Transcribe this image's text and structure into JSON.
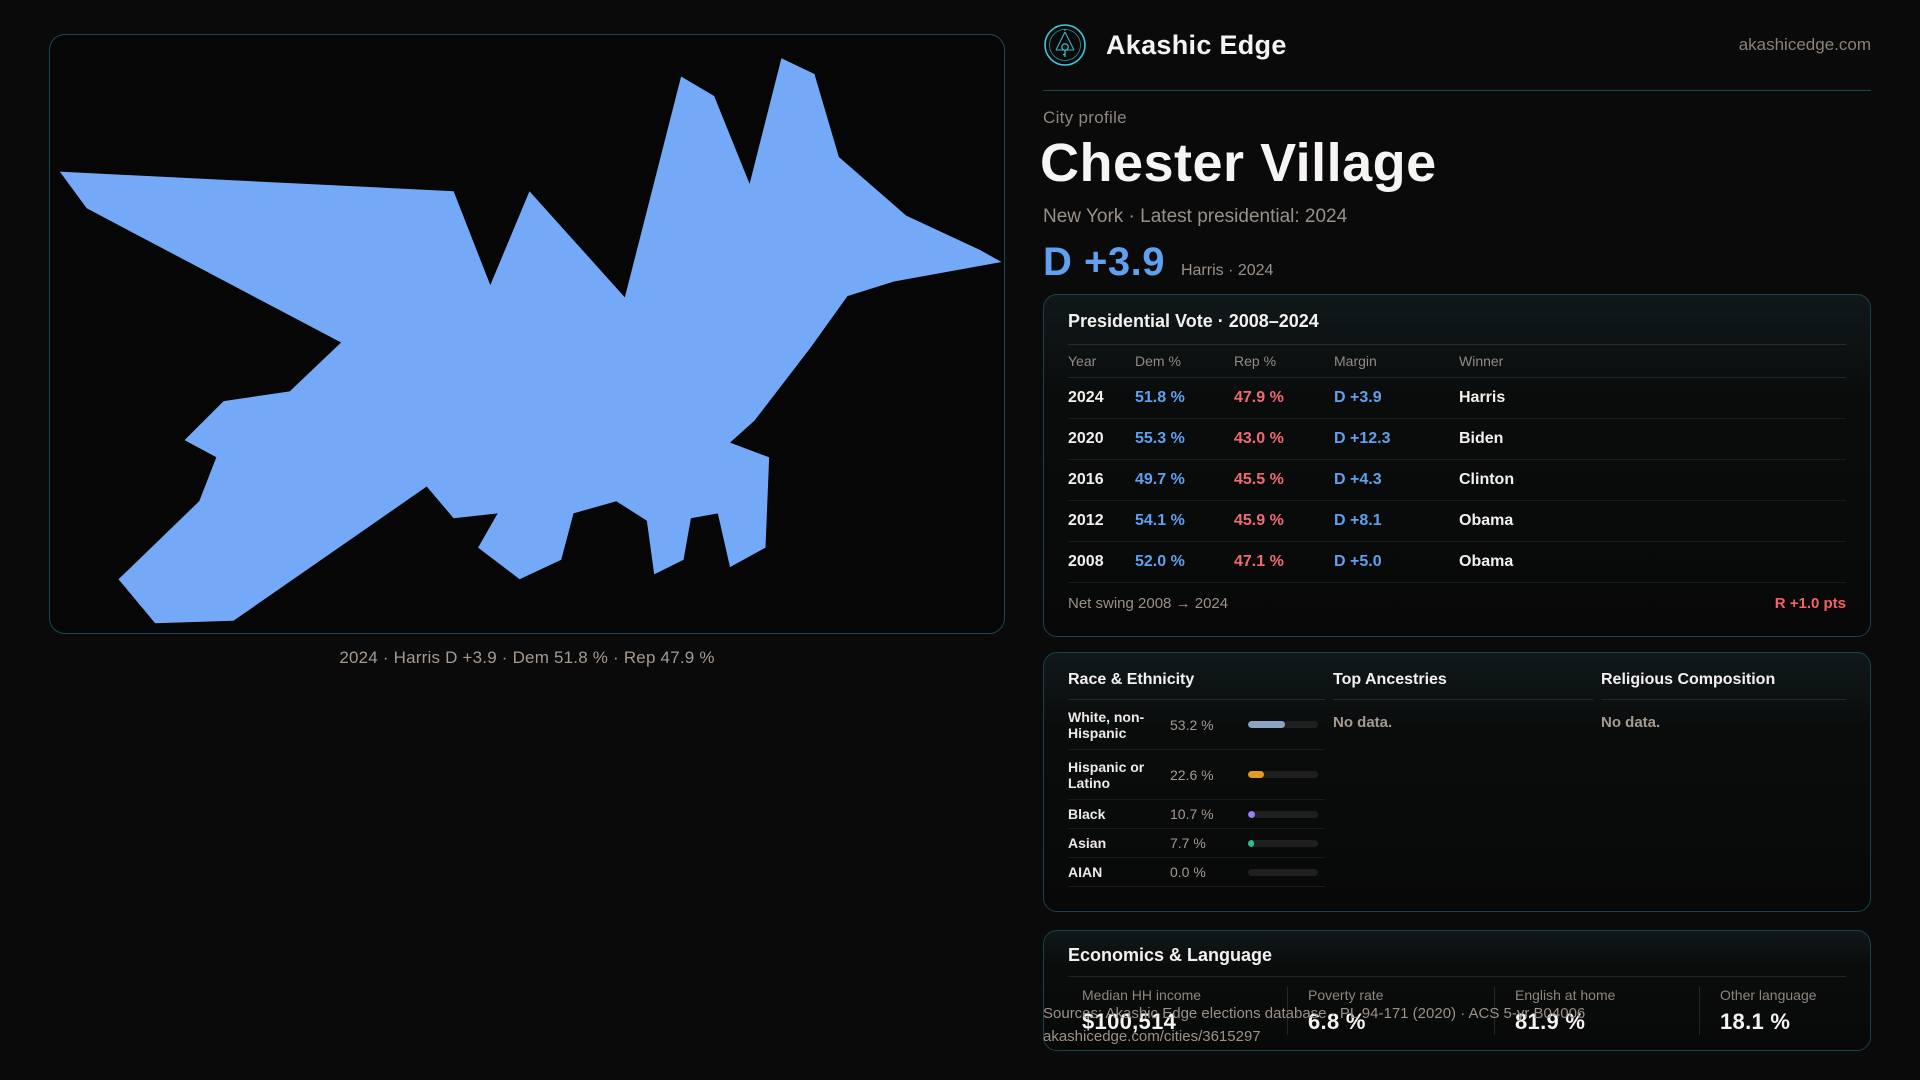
{
  "brand": {
    "name": "Akashic Edge",
    "domain": "akashicedge.com",
    "accent_color": "#3ec7d9"
  },
  "map": {
    "caption": "2024 · Harris D +3.9 · Dem 51.8 % · Rep 47.9 %",
    "shape_color": "#74a9f7"
  },
  "hero": {
    "eyebrow": "City profile",
    "title": "Chester Village",
    "meta": "New York · Latest presidential: 2024",
    "margin": "D +3.9",
    "margin_caption": "Harris · 2024"
  },
  "presidential": {
    "title": "Presidential Vote · 2008–2024",
    "columns": {
      "year": "Year",
      "dem": "Dem %",
      "rep": "Rep %",
      "margin": "Margin",
      "winner": "Winner"
    },
    "rows": [
      {
        "year": "2024",
        "dem": "51.8 %",
        "rep": "47.9 %",
        "margin": "D +3.9",
        "winner": "Harris"
      },
      {
        "year": "2020",
        "dem": "55.3 %",
        "rep": "43.0 %",
        "margin": "D +12.3",
        "winner": "Biden"
      },
      {
        "year": "2016",
        "dem": "49.7 %",
        "rep": "45.5 %",
        "margin": "D +4.3",
        "winner": "Clinton"
      },
      {
        "year": "2012",
        "dem": "54.1 %",
        "rep": "45.9 %",
        "margin": "D +8.1",
        "winner": "Obama"
      },
      {
        "year": "2008",
        "dem": "52.0 %",
        "rep": "47.1 %",
        "margin": "D +5.0",
        "winner": "Obama"
      }
    ],
    "net_swing_label": "Net swing 2008 → 2024",
    "net_swing_value": "R +1.0 pts"
  },
  "demographics": {
    "race": {
      "title": "Race & Ethnicity",
      "rows": [
        {
          "label": "White, non-Hispanic",
          "value": "53.2 %",
          "pct": 53.2,
          "color": "#8ea3c2"
        },
        {
          "label": "Hispanic or Latino",
          "value": "22.6 %",
          "pct": 22.6,
          "color": "#e39c20"
        },
        {
          "label": "Black",
          "value": "10.7 %",
          "pct": 10.7,
          "color": "#9b7ef0"
        },
        {
          "label": "Asian",
          "value": "7.7 %",
          "pct": 7.7,
          "color": "#2cc08d"
        },
        {
          "label": "AIAN",
          "value": "0.0 %",
          "pct": 0.0,
          "color": "#8ea3c2"
        }
      ]
    },
    "ancestries": {
      "title": "Top Ancestries",
      "empty": "No data."
    },
    "religion": {
      "title": "Religious Composition",
      "empty": "No data."
    }
  },
  "economics": {
    "title": "Economics & Language",
    "stats": [
      {
        "label": "Median HH income",
        "value": "$100,514"
      },
      {
        "label": "Poverty rate",
        "value": "6.8 %"
      },
      {
        "label": "English at home",
        "value": "81.9 %"
      },
      {
        "label": "Other language",
        "value": "18.1 %"
      }
    ]
  },
  "footer": {
    "line1": "Sources: Akashic Edge elections database · PL 94-171 (2020) · ACS 5-yr B04006",
    "line2": "akashicedge.com/cities/3615297"
  }
}
